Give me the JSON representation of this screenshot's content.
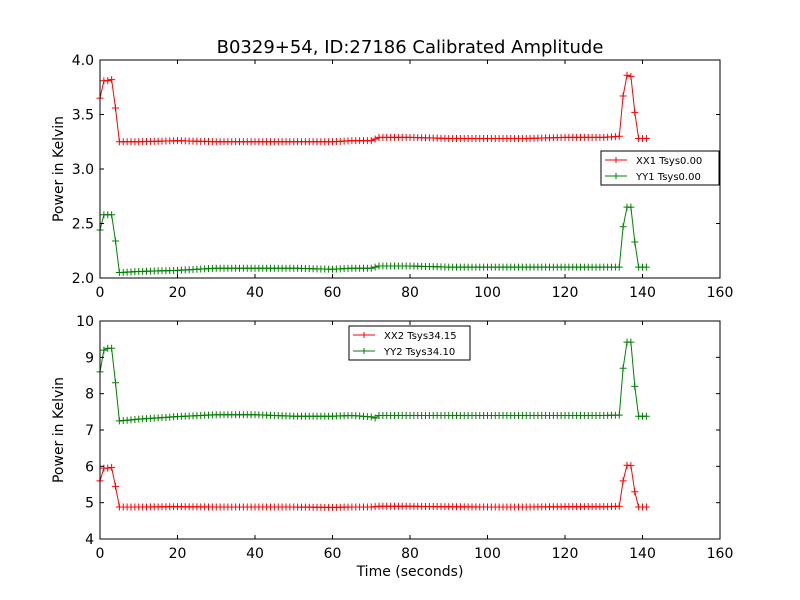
{
  "title": "B0329+54, ID:27186 Calibrated Amplitude",
  "colors": {
    "xx": "#ff0000",
    "yy": "#008000",
    "axis": "#000000",
    "background": "#ffffff"
  },
  "chart_data": [
    {
      "type": "line",
      "title": "B0329+54, ID:27186 Calibrated Amplitude",
      "xlabel": "",
      "ylabel": "Power in Kelvin",
      "xlim": [
        0,
        160
      ],
      "ylim": [
        2.0,
        4.0
      ],
      "xticks": [
        "0",
        "20",
        "40",
        "60",
        "80",
        "100",
        "120",
        "140",
        "160"
      ],
      "yticks": [
        "2.0",
        "2.5",
        "3.0",
        "3.5",
        "4.0"
      ],
      "grid": false,
      "legend_position": "center-right",
      "marker": "+",
      "series": [
        {
          "name": "XX1 Tsys0.00",
          "color": "#ff0000",
          "x": [
            0,
            1,
            2,
            3,
            4,
            5,
            10,
            20,
            30,
            40,
            50,
            60,
            65,
            68,
            70,
            72,
            80,
            90,
            100,
            110,
            120,
            130,
            134,
            135,
            136,
            137,
            138,
            139,
            140,
            141
          ],
          "y": [
            3.65,
            3.81,
            3.81,
            3.82,
            3.56,
            3.25,
            3.25,
            3.26,
            3.25,
            3.25,
            3.25,
            3.25,
            3.26,
            3.26,
            3.26,
            3.29,
            3.29,
            3.28,
            3.28,
            3.28,
            3.29,
            3.29,
            3.3,
            3.67,
            3.86,
            3.85,
            3.52,
            3.28,
            3.28,
            3.28
          ]
        },
        {
          "name": "YY1 Tsys0.00",
          "color": "#008000",
          "x": [
            0,
            1,
            2,
            3,
            4,
            5,
            10,
            20,
            30,
            40,
            50,
            60,
            65,
            68,
            70,
            72,
            80,
            90,
            100,
            110,
            120,
            130,
            134,
            135,
            136,
            137,
            138,
            139,
            140,
            141
          ],
          "y": [
            2.44,
            2.58,
            2.58,
            2.58,
            2.34,
            2.05,
            2.06,
            2.07,
            2.09,
            2.09,
            2.09,
            2.08,
            2.09,
            2.09,
            2.09,
            2.11,
            2.11,
            2.1,
            2.1,
            2.1,
            2.1,
            2.1,
            2.1,
            2.47,
            2.65,
            2.65,
            2.33,
            2.1,
            2.1,
            2.1
          ]
        }
      ]
    },
    {
      "type": "line",
      "title": "",
      "xlabel": "Time (seconds)",
      "ylabel": "Power in Kelvin",
      "xlim": [
        0,
        160
      ],
      "ylim": [
        4,
        10
      ],
      "xticks": [
        "0",
        "20",
        "40",
        "60",
        "80",
        "100",
        "120",
        "140",
        "160"
      ],
      "yticks": [
        "4",
        "5",
        "6",
        "7",
        "8",
        "9",
        "10"
      ],
      "grid": false,
      "legend_position": "top-center",
      "marker": "+",
      "series": [
        {
          "name": "XX2 Tsys34.15",
          "color": "#ff0000",
          "x": [
            0,
            1,
            2,
            3,
            4,
            5,
            10,
            20,
            30,
            40,
            50,
            60,
            65,
            70,
            72,
            80,
            90,
            100,
            110,
            120,
            130,
            134,
            135,
            136,
            137,
            138,
            139,
            140,
            141
          ],
          "y": [
            5.6,
            5.95,
            5.95,
            5.97,
            5.45,
            4.88,
            4.88,
            4.89,
            4.88,
            4.88,
            4.88,
            4.87,
            4.88,
            4.88,
            4.9,
            4.9,
            4.89,
            4.88,
            4.88,
            4.89,
            4.89,
            4.9,
            5.6,
            6.03,
            6.02,
            5.3,
            4.88,
            4.88,
            4.88
          ]
        },
        {
          "name": "YY2 Tsys34.10",
          "color": "#008000",
          "x": [
            0,
            1,
            2,
            3,
            4,
            5,
            10,
            20,
            30,
            40,
            50,
            60,
            65,
            70,
            71,
            72,
            80,
            90,
            100,
            110,
            120,
            130,
            134,
            135,
            136,
            137,
            138,
            139,
            140,
            141
          ],
          "y": [
            8.6,
            9.2,
            9.25,
            9.25,
            8.3,
            7.25,
            7.3,
            7.37,
            7.42,
            7.42,
            7.38,
            7.38,
            7.4,
            7.36,
            7.33,
            7.4,
            7.4,
            7.4,
            7.4,
            7.4,
            7.4,
            7.4,
            7.41,
            8.7,
            9.42,
            9.42,
            8.2,
            7.38,
            7.38,
            7.38
          ]
        }
      ]
    }
  ]
}
